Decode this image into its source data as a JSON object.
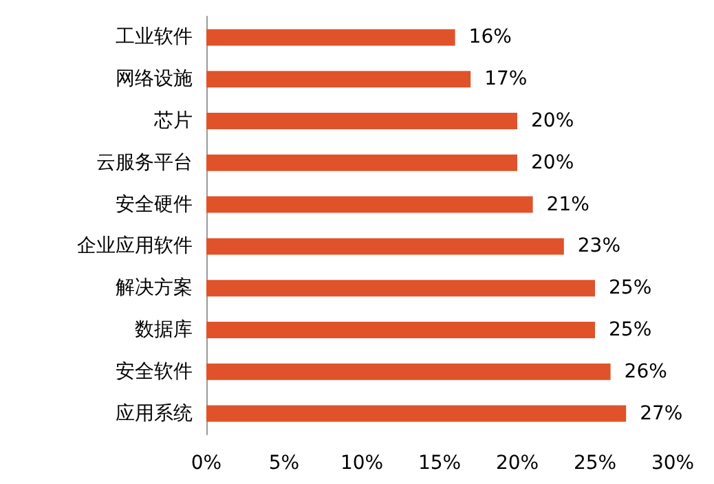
{
  "chart_data": {
    "type": "bar",
    "orientation": "horizontal",
    "categories": [
      "工业软件",
      "网络设施",
      "芯片",
      "云服务平台",
      "安全硬件",
      "企业应用软件",
      "解决方案",
      "数据库",
      "安全软件",
      "应用系统"
    ],
    "values": [
      16,
      17,
      20,
      20,
      21,
      23,
      25,
      25,
      26,
      27
    ],
    "value_labels": [
      "16%",
      "17%",
      "20%",
      "20%",
      "21%",
      "23%",
      "25%",
      "25%",
      "26%",
      "27%"
    ],
    "color": "#e0522a",
    "xlim": [
      0,
      30
    ],
    "xticks": [
      {
        "value": 0,
        "label": "0%"
      },
      {
        "value": 5,
        "label": "5%"
      },
      {
        "value": 10,
        "label": "10%"
      },
      {
        "value": 15,
        "label": "15%"
      },
      {
        "value": 20,
        "label": "20%"
      },
      {
        "value": 25,
        "label": "25%"
      },
      {
        "value": 30,
        "label": "30%"
      }
    ],
    "grid": false
  }
}
